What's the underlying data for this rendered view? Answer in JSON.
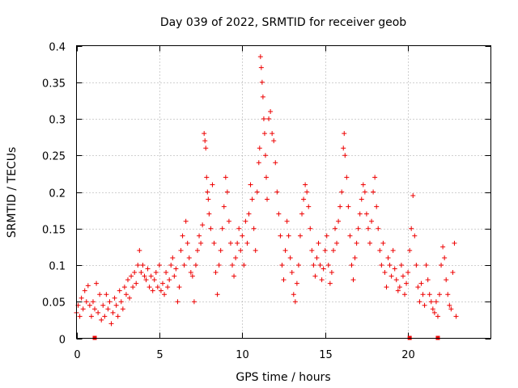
{
  "chart_data": {
    "type": "scatter",
    "title": "Day 039 of 2022, SRMTID for receiver geob",
    "xlabel": "GPS time / hours",
    "ylabel": "SRMTID / TECUs",
    "xlim": [
      0,
      25
    ],
    "ylim": [
      0,
      0.4
    ],
    "xticks": [
      0,
      5,
      10,
      15,
      20
    ],
    "xtick_labels": [
      "0",
      "5",
      "10",
      "15",
      "20"
    ],
    "yticks": [
      0,
      0.05,
      0.1,
      0.15,
      0.2,
      0.25,
      0.3,
      0.35,
      0.4
    ],
    "ytick_labels": [
      "0",
      "0.05",
      "0.1",
      "0.15",
      "0.2",
      "0.25",
      "0.3",
      "0.35",
      "0.4"
    ],
    "grid": true,
    "marker": "plus",
    "color": "#ee0000",
    "series": [
      {
        "name": "SRMTID",
        "points": [
          [
            0.0,
            0.035
          ],
          [
            0.1,
            0.045
          ],
          [
            0.2,
            0.03
          ],
          [
            0.3,
            0.055
          ],
          [
            0.4,
            0.04
          ],
          [
            0.5,
            0.065
          ],
          [
            0.6,
            0.05
          ],
          [
            0.7,
            0.072
          ],
          [
            0.8,
            0.045
          ],
          [
            0.9,
            0.03
          ],
          [
            1.0,
            0.05
          ],
          [
            1.1,
            0.04
          ],
          [
            1.2,
            0.075
          ],
          [
            1.3,
            0.035
          ],
          [
            1.4,
            0.06
          ],
          [
            1.5,
            0.025
          ],
          [
            1.6,
            0.045
          ],
          [
            1.7,
            0.03
          ],
          [
            1.8,
            0.06
          ],
          [
            1.9,
            0.04
          ],
          [
            2.0,
            0.05
          ],
          [
            2.1,
            0.02
          ],
          [
            2.2,
            0.035
          ],
          [
            2.3,
            0.055
          ],
          [
            2.4,
            0.045
          ],
          [
            2.5,
            0.03
          ],
          [
            2.6,
            0.065
          ],
          [
            2.7,
            0.05
          ],
          [
            2.8,
            0.04
          ],
          [
            2.9,
            0.07
          ],
          [
            3.0,
            0.06
          ],
          [
            3.1,
            0.08
          ],
          [
            3.2,
            0.055
          ],
          [
            3.3,
            0.085
          ],
          [
            3.4,
            0.07
          ],
          [
            3.5,
            0.09
          ],
          [
            3.6,
            0.075
          ],
          [
            3.7,
            0.1
          ],
          [
            3.8,
            0.12
          ],
          [
            3.9,
            0.09
          ],
          [
            4.0,
            0.1
          ],
          [
            4.1,
            0.085
          ],
          [
            4.2,
            0.08
          ],
          [
            4.3,
            0.095
          ],
          [
            4.4,
            0.07
          ],
          [
            4.5,
            0.085
          ],
          [
            4.6,
            0.065
          ],
          [
            4.7,
            0.08
          ],
          [
            4.8,
            0.09
          ],
          [
            4.9,
            0.07
          ],
          [
            5.0,
            0.1
          ],
          [
            5.1,
            0.065
          ],
          [
            5.2,
            0.075
          ],
          [
            5.3,
            0.06
          ],
          [
            5.4,
            0.09
          ],
          [
            5.5,
            0.07
          ],
          [
            5.6,
            0.08
          ],
          [
            5.7,
            0.1
          ],
          [
            5.8,
            0.11
          ],
          [
            5.9,
            0.085
          ],
          [
            6.0,
            0.095
          ],
          [
            6.1,
            0.05
          ],
          [
            6.2,
            0.07
          ],
          [
            6.3,
            0.12
          ],
          [
            6.4,
            0.14
          ],
          [
            6.5,
            0.1
          ],
          [
            6.6,
            0.16
          ],
          [
            6.7,
            0.13
          ],
          [
            6.8,
            0.11
          ],
          [
            6.9,
            0.09
          ],
          [
            7.0,
            0.085
          ],
          [
            7.1,
            0.05
          ],
          [
            7.2,
            0.1
          ],
          [
            7.3,
            0.12
          ],
          [
            7.4,
            0.14
          ],
          [
            7.5,
            0.13
          ],
          [
            7.6,
            0.155
          ],
          [
            7.7,
            0.28
          ],
          [
            7.75,
            0.27
          ],
          [
            7.8,
            0.26
          ],
          [
            7.85,
            0.22
          ],
          [
            7.9,
            0.2
          ],
          [
            7.95,
            0.19
          ],
          [
            8.0,
            0.17
          ],
          [
            8.1,
            0.15
          ],
          [
            8.2,
            0.21
          ],
          [
            8.3,
            0.13
          ],
          [
            8.4,
            0.09
          ],
          [
            8.5,
            0.06
          ],
          [
            8.6,
            0.1
          ],
          [
            8.7,
            0.12
          ],
          [
            8.8,
            0.15
          ],
          [
            8.9,
            0.18
          ],
          [
            9.0,
            0.22
          ],
          [
            9.1,
            0.2
          ],
          [
            9.2,
            0.16
          ],
          [
            9.3,
            0.13
          ],
          [
            9.4,
            0.1
          ],
          [
            9.5,
            0.085
          ],
          [
            9.6,
            0.11
          ],
          [
            9.7,
            0.13
          ],
          [
            9.8,
            0.15
          ],
          [
            9.9,
            0.12
          ],
          [
            10.0,
            0.14
          ],
          [
            10.1,
            0.1
          ],
          [
            10.2,
            0.16
          ],
          [
            10.3,
            0.13
          ],
          [
            10.4,
            0.17
          ],
          [
            10.5,
            0.21
          ],
          [
            10.6,
            0.19
          ],
          [
            10.7,
            0.15
          ],
          [
            10.8,
            0.12
          ],
          [
            10.9,
            0.2
          ],
          [
            11.0,
            0.24
          ],
          [
            11.05,
            0.26
          ],
          [
            11.1,
            0.385
          ],
          [
            11.15,
            0.37
          ],
          [
            11.2,
            0.35
          ],
          [
            11.25,
            0.33
          ],
          [
            11.3,
            0.3
          ],
          [
            11.35,
            0.28
          ],
          [
            11.4,
            0.25
          ],
          [
            11.45,
            0.22
          ],
          [
            11.5,
            0.19
          ],
          [
            11.6,
            0.3
          ],
          [
            11.7,
            0.31
          ],
          [
            11.8,
            0.28
          ],
          [
            11.9,
            0.27
          ],
          [
            12.0,
            0.24
          ],
          [
            12.1,
            0.2
          ],
          [
            12.2,
            0.17
          ],
          [
            12.3,
            0.14
          ],
          [
            12.4,
            0.1
          ],
          [
            12.5,
            0.08
          ],
          [
            12.6,
            0.12
          ],
          [
            12.7,
            0.16
          ],
          [
            12.8,
            0.14
          ],
          [
            12.9,
            0.11
          ],
          [
            13.0,
            0.09
          ],
          [
            13.1,
            0.06
          ],
          [
            13.2,
            0.05
          ],
          [
            13.3,
            0.075
          ],
          [
            13.4,
            0.1
          ],
          [
            13.5,
            0.14
          ],
          [
            13.6,
            0.17
          ],
          [
            13.7,
            0.19
          ],
          [
            13.8,
            0.21
          ],
          [
            13.9,
            0.2
          ],
          [
            14.0,
            0.18
          ],
          [
            14.1,
            0.15
          ],
          [
            14.2,
            0.12
          ],
          [
            14.3,
            0.1
          ],
          [
            14.4,
            0.085
          ],
          [
            14.5,
            0.11
          ],
          [
            14.6,
            0.13
          ],
          [
            14.7,
            0.1
          ],
          [
            14.8,
            0.08
          ],
          [
            14.9,
            0.095
          ],
          [
            15.0,
            0.12
          ],
          [
            15.1,
            0.14
          ],
          [
            15.2,
            0.1
          ],
          [
            15.3,
            0.075
          ],
          [
            15.4,
            0.09
          ],
          [
            15.5,
            0.12
          ],
          [
            15.6,
            0.15
          ],
          [
            15.7,
            0.13
          ],
          [
            15.8,
            0.16
          ],
          [
            15.9,
            0.18
          ],
          [
            16.0,
            0.2
          ],
          [
            16.1,
            0.26
          ],
          [
            16.15,
            0.28
          ],
          [
            16.2,
            0.25
          ],
          [
            16.3,
            0.22
          ],
          [
            16.4,
            0.18
          ],
          [
            16.5,
            0.14
          ],
          [
            16.6,
            0.1
          ],
          [
            16.7,
            0.08
          ],
          [
            16.8,
            0.11
          ],
          [
            16.9,
            0.13
          ],
          [
            17.0,
            0.15
          ],
          [
            17.1,
            0.17
          ],
          [
            17.2,
            0.19
          ],
          [
            17.3,
            0.21
          ],
          [
            17.4,
            0.2
          ],
          [
            17.5,
            0.17
          ],
          [
            17.6,
            0.15
          ],
          [
            17.7,
            0.13
          ],
          [
            17.8,
            0.16
          ],
          [
            17.9,
            0.2
          ],
          [
            18.0,
            0.22
          ],
          [
            18.1,
            0.18
          ],
          [
            18.2,
            0.15
          ],
          [
            18.3,
            0.12
          ],
          [
            18.4,
            0.1
          ],
          [
            18.5,
            0.13
          ],
          [
            18.6,
            0.09
          ],
          [
            18.7,
            0.07
          ],
          [
            18.8,
            0.11
          ],
          [
            18.9,
            0.1
          ],
          [
            19.0,
            0.085
          ],
          [
            19.1,
            0.12
          ],
          [
            19.2,
            0.095
          ],
          [
            19.3,
            0.08
          ],
          [
            19.4,
            0.065
          ],
          [
            19.5,
            0.07
          ],
          [
            19.6,
            0.1
          ],
          [
            19.7,
            0.085
          ],
          [
            19.8,
            0.06
          ],
          [
            19.9,
            0.075
          ],
          [
            20.0,
            0.09
          ],
          [
            20.1,
            0.12
          ],
          [
            20.2,
            0.15
          ],
          [
            20.3,
            0.195
          ],
          [
            20.4,
            0.14
          ],
          [
            20.5,
            0.1
          ],
          [
            20.6,
            0.07
          ],
          [
            20.7,
            0.05
          ],
          [
            20.8,
            0.075
          ],
          [
            20.9,
            0.06
          ],
          [
            21.0,
            0.045
          ],
          [
            21.1,
            0.1
          ],
          [
            21.2,
            0.08
          ],
          [
            21.3,
            0.06
          ],
          [
            21.4,
            0.05
          ],
          [
            21.5,
            0.04
          ],
          [
            21.6,
            0.035
          ],
          [
            21.7,
            0.05
          ],
          [
            21.8,
            0.03
          ],
          [
            21.9,
            0.06
          ],
          [
            22.0,
            0.1
          ],
          [
            22.1,
            0.125
          ],
          [
            22.2,
            0.11
          ],
          [
            22.3,
            0.08
          ],
          [
            22.4,
            0.06
          ],
          [
            22.5,
            0.045
          ],
          [
            22.6,
            0.04
          ],
          [
            22.7,
            0.09
          ],
          [
            22.8,
            0.13
          ],
          [
            22.9,
            0.03
          ]
        ]
      }
    ],
    "zero_markers_x": [
      1.1,
      20.1,
      21.8
    ]
  }
}
